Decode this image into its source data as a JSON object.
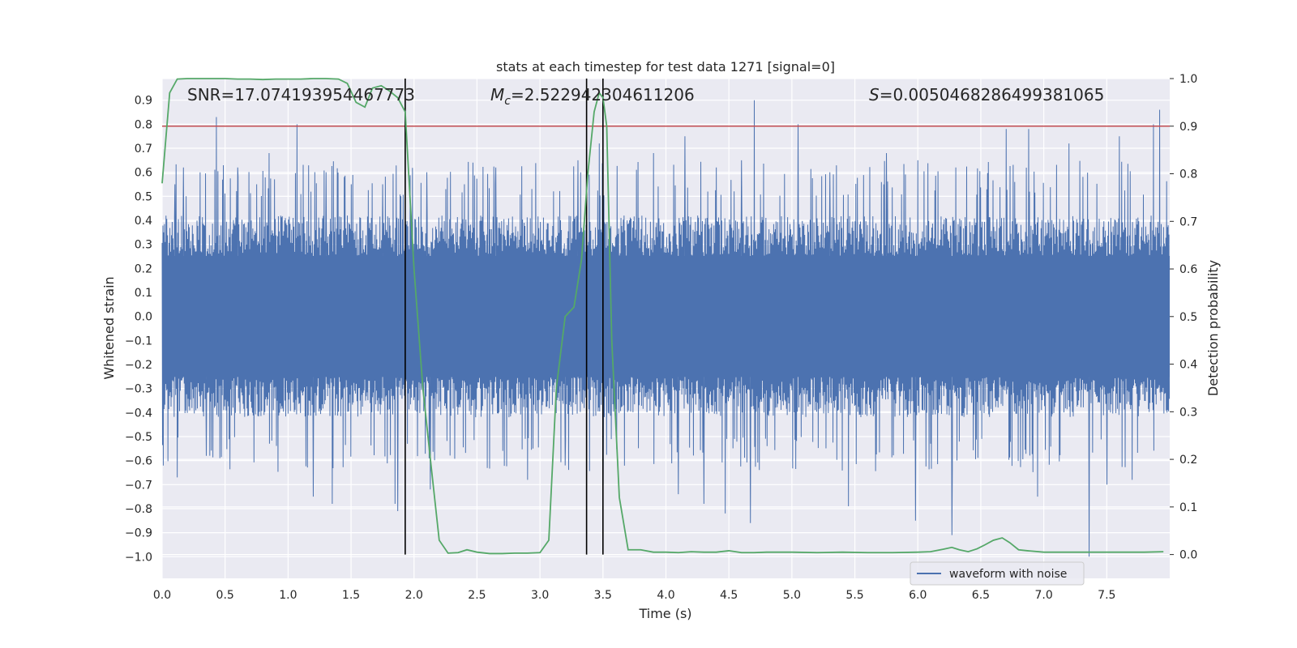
{
  "chart_data": {
    "type": "line",
    "title": "stats at each timestep for test data 1271 [signal=0]",
    "xlabel": "Time (s)",
    "ylabel_left": "Whitened strain",
    "ylabel_right": "Detection probability",
    "xlim": [
      0.0,
      8.0
    ],
    "ylim_left": [
      -1.09,
      0.99
    ],
    "ylim_right": [
      -0.05,
      1.0
    ],
    "x_ticks": [
      "0.0",
      "0.5",
      "1.0",
      "1.5",
      "2.0",
      "2.5",
      "3.0",
      "3.5",
      "4.0",
      "4.5",
      "5.0",
      "5.5",
      "6.0",
      "6.5",
      "7.0",
      "7.5"
    ],
    "y_ticks_left": [
      "0.9",
      "0.8",
      "0.7",
      "0.6",
      "0.5",
      "0.4",
      "0.3",
      "0.2",
      "0.1",
      "0.0",
      "−0.1",
      "−0.2",
      "−0.3",
      "−0.4",
      "−0.5",
      "−0.6",
      "−0.7",
      "−0.8",
      "−0.9",
      "−1.0"
    ],
    "y_ticks_right": [
      "1.0",
      "0.9",
      "0.8",
      "0.7",
      "0.6",
      "0.5",
      "0.4",
      "0.3",
      "0.2",
      "0.1",
      "0.0"
    ],
    "grid": true,
    "legend_position": "lower-right",
    "annotations": {
      "snr": "SNR=17.074193954467773",
      "mc_symbol": "M",
      "mc_sub": "c",
      "mc_value": "=2.522942304611206",
      "s_symbol": "S",
      "s_value": "=0.0050468286499381065"
    },
    "vertical_lines_s": [
      1.93,
      3.37,
      3.5
    ],
    "threshold_right": 0.9,
    "series": [
      {
        "name": "waveform with noise",
        "color": "#4c72b0",
        "axis": "left",
        "description_values": "dense noisy strain, typical band -0.45..0.45, peaks to 0.9 and -1.0",
        "core_band": [
          -0.42,
          0.42
        ],
        "spike_max": [
          [
            0.1,
            0.55
          ],
          [
            0.17,
            0.62
          ],
          [
            0.3,
            0.6
          ],
          [
            0.43,
            0.83
          ],
          [
            0.6,
            0.62
          ],
          [
            0.75,
            0.55
          ],
          [
            0.85,
            0.68
          ],
          [
            1.07,
            0.8
          ],
          [
            1.3,
            0.6
          ],
          [
            1.5,
            0.55
          ],
          [
            1.75,
            0.55
          ],
          [
            2.1,
            0.6
          ],
          [
            2.4,
            0.55
          ],
          [
            2.65,
            0.62
          ],
          [
            3.3,
            0.65
          ],
          [
            3.47,
            0.72
          ],
          [
            3.9,
            0.68
          ],
          [
            4.15,
            0.75
          ],
          [
            4.4,
            0.62
          ],
          [
            4.6,
            0.65
          ],
          [
            4.7,
            0.9
          ],
          [
            5.05,
            0.8
          ],
          [
            5.3,
            0.6
          ],
          [
            5.75,
            0.68
          ],
          [
            6.0,
            0.65
          ],
          [
            6.3,
            0.62
          ],
          [
            6.7,
            0.78
          ],
          [
            6.88,
            0.78
          ],
          [
            7.2,
            0.72
          ],
          [
            7.6,
            0.75
          ],
          [
            7.87,
            0.8
          ],
          [
            7.92,
            0.86
          ]
        ],
        "spike_min": [
          [
            0.12,
            -0.67
          ],
          [
            0.35,
            -0.58
          ],
          [
            0.6,
            -0.68
          ],
          [
            1.2,
            -0.75
          ],
          [
            1.35,
            -0.78
          ],
          [
            1.85,
            -0.78
          ],
          [
            1.87,
            -0.81
          ],
          [
            2.13,
            -0.72
          ],
          [
            2.9,
            -0.68
          ],
          [
            3.2,
            -0.62
          ],
          [
            3.5,
            -0.7
          ],
          [
            4.1,
            -0.74
          ],
          [
            4.3,
            -0.78
          ],
          [
            4.47,
            -0.82
          ],
          [
            4.67,
            -0.86
          ],
          [
            5.45,
            -0.79
          ],
          [
            5.98,
            -0.85
          ],
          [
            6.27,
            -0.91
          ],
          [
            6.95,
            -0.75
          ],
          [
            7.36,
            -1.0
          ],
          [
            7.5,
            -0.7
          ],
          [
            7.7,
            -0.68
          ]
        ]
      },
      {
        "name": "",
        "color": "#55a868",
        "axis": "right",
        "x": [
          0.0,
          0.06,
          0.12,
          0.2,
          0.3,
          0.4,
          0.5,
          0.6,
          0.7,
          0.8,
          0.9,
          1.0,
          1.1,
          1.2,
          1.3,
          1.4,
          1.47,
          1.54,
          1.61,
          1.67,
          1.74,
          1.8,
          1.87,
          1.93,
          2.0,
          2.07,
          2.13,
          2.2,
          2.27,
          2.35,
          2.42,
          2.5,
          2.6,
          2.7,
          2.8,
          2.9,
          3.0,
          3.07,
          3.13,
          3.2,
          3.27,
          3.33,
          3.38,
          3.43,
          3.47,
          3.5,
          3.53,
          3.57,
          3.63,
          3.7,
          3.8,
          3.9,
          4.0,
          4.1,
          4.2,
          4.3,
          4.4,
          4.5,
          4.6,
          4.7,
          4.8,
          4.9,
          5.0,
          5.2,
          5.4,
          5.6,
          5.8,
          6.0,
          6.1,
          6.2,
          6.27,
          6.33,
          6.4,
          6.47,
          6.53,
          6.6,
          6.67,
          6.73,
          6.8,
          6.87,
          7.0,
          7.2,
          7.4,
          7.6,
          7.8,
          7.95
        ],
        "y": [
          0.78,
          0.97,
          0.999,
          1.0,
          1.0,
          1.0,
          1.0,
          0.999,
          0.999,
          0.998,
          0.999,
          0.999,
          0.999,
          1.0,
          1.0,
          0.999,
          0.99,
          0.95,
          0.94,
          0.98,
          0.985,
          0.975,
          0.96,
          0.93,
          0.6,
          0.35,
          0.2,
          0.03,
          0.003,
          0.004,
          0.01,
          0.005,
          0.002,
          0.002,
          0.003,
          0.003,
          0.004,
          0.03,
          0.35,
          0.5,
          0.52,
          0.62,
          0.8,
          0.93,
          0.97,
          0.96,
          0.9,
          0.45,
          0.12,
          0.01,
          0.01,
          0.005,
          0.005,
          0.004,
          0.006,
          0.005,
          0.005,
          0.008,
          0.004,
          0.004,
          0.005,
          0.005,
          0.005,
          0.004,
          0.005,
          0.004,
          0.004,
          0.005,
          0.006,
          0.011,
          0.015,
          0.01,
          0.006,
          0.012,
          0.02,
          0.03,
          0.035,
          0.025,
          0.01,
          0.008,
          0.005,
          0.005,
          0.005,
          0.005,
          0.005,
          0.006
        ]
      }
    ]
  }
}
